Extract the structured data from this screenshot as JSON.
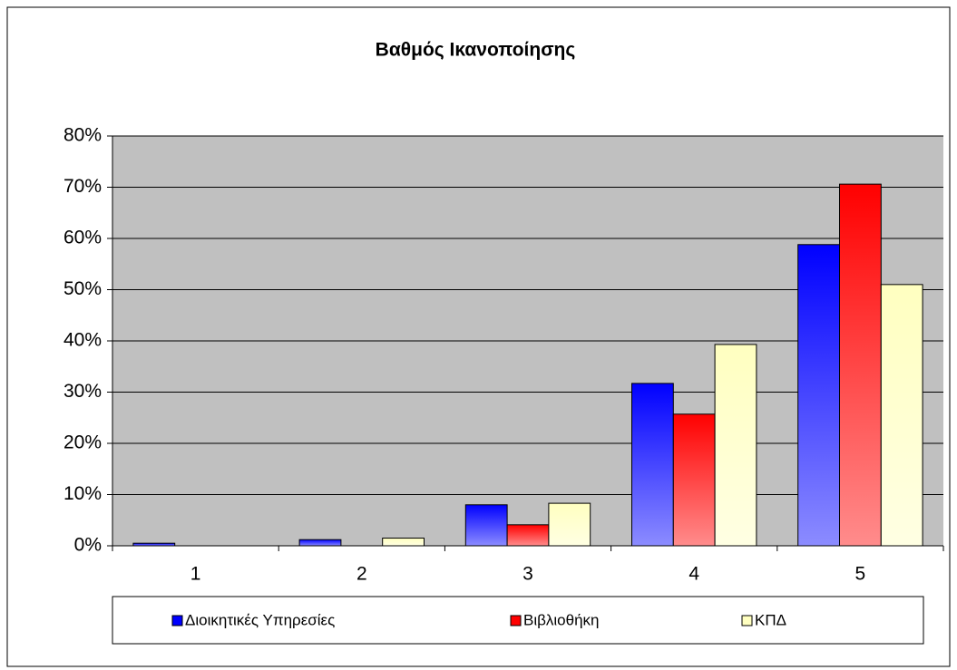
{
  "chart_data": {
    "type": "bar",
    "title": "Βαθμός Ικανοποίησης",
    "categories": [
      "1",
      "2",
      "3",
      "4",
      "5"
    ],
    "series": [
      {
        "name": "Διοικητικές Υπηρεσίες",
        "color": "#0000ff",
        "values": [
          0.5,
          1.2,
          8,
          31.7,
          58.8
        ]
      },
      {
        "name": "Βιβλιοθήκη",
        "color": "#ff0000",
        "values": [
          0,
          0,
          4.1,
          25.7,
          70.6
        ]
      },
      {
        "name": "ΚΠΔ",
        "color": "#ffffc0",
        "values": [
          0,
          1.5,
          8.3,
          39.3,
          51
        ]
      }
    ],
    "ylim": [
      0,
      80
    ],
    "yticks": [
      {
        "value": 0,
        "label": "0%"
      },
      {
        "value": 10,
        "label": "10%"
      },
      {
        "value": 20,
        "label": "20%"
      },
      {
        "value": 30,
        "label": "30%"
      },
      {
        "value": 40,
        "label": "40%"
      },
      {
        "value": 50,
        "label": "50%"
      },
      {
        "value": 60,
        "label": "60%"
      },
      {
        "value": 70,
        "label": "70%"
      },
      {
        "value": 80,
        "label": "80%"
      }
    ],
    "grid": true,
    "legend": "bottom"
  }
}
